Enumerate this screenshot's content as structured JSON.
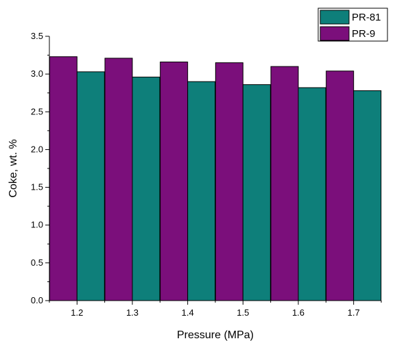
{
  "chart_data": {
    "type": "bar",
    "categories": [
      "1.2",
      "1.3",
      "1.4",
      "1.5",
      "1.6",
      "1.7"
    ],
    "series": [
      {
        "name": "PR-9",
        "color": "#7b0f7b",
        "values": [
          3.23,
          3.21,
          3.16,
          3.15,
          3.1,
          3.04
        ]
      },
      {
        "name": "PR-81",
        "color": "#0e7f7a",
        "values": [
          3.03,
          2.96,
          2.9,
          2.86,
          2.82,
          2.78
        ]
      }
    ],
    "xlabel": "Pressure (MPa)",
    "ylabel": "Coke, wt. %",
    "ylim": [
      0.0,
      3.5
    ],
    "yticks": [
      "0.0",
      "0.5",
      "1.0",
      "1.5",
      "2.0",
      "2.5",
      "3.0",
      "3.5"
    ],
    "legend": {
      "placement": "top-right",
      "entries": [
        {
          "name": "PR-81",
          "color": "#0e7f7a"
        },
        {
          "name": "PR-9",
          "color": "#7b0f7b"
        }
      ]
    },
    "grid": false
  }
}
